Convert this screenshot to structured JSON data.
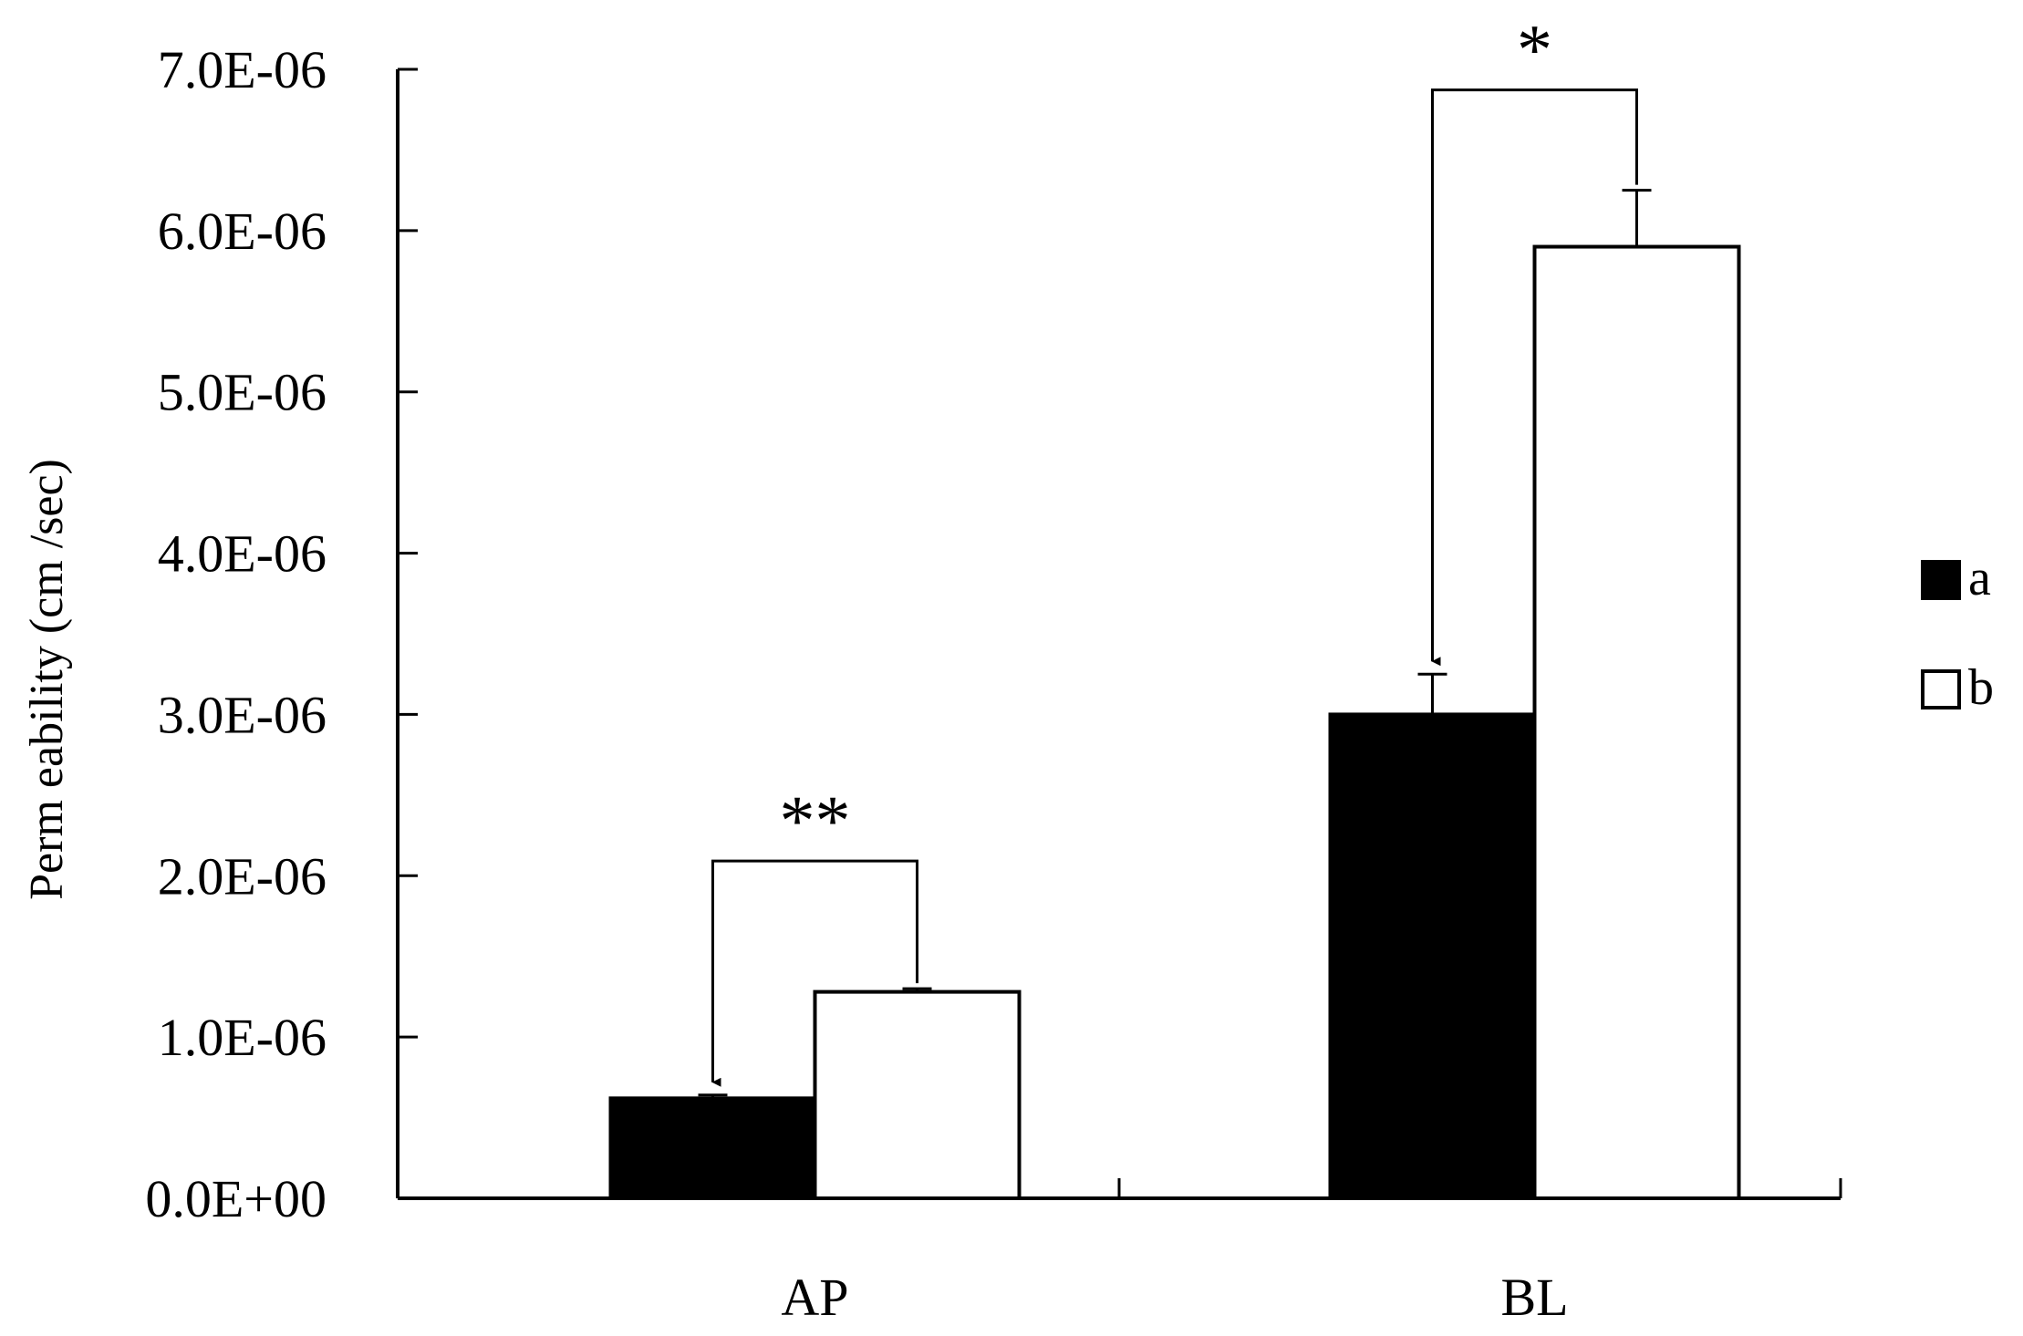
{
  "chart_data": {
    "type": "bar",
    "ylabel": "Perm eability (cm /sec)",
    "categories": [
      "AP",
      "BL"
    ],
    "series": [
      {
        "name": "a",
        "color": "#000000",
        "values": [
          6.2e-07,
          3e-06
        ],
        "errors": [
          2e-08,
          2.5e-07
        ]
      },
      {
        "name": "b",
        "color": "#ffffff",
        "values": [
          1.28e-06,
          5.9e-06
        ],
        "errors": [
          2e-08,
          3.5e-07
        ]
      }
    ],
    "ylim": [
      0,
      7e-06
    ],
    "yticks": [
      {
        "value": 0,
        "label": "0.0E+00"
      },
      {
        "value": 1e-06,
        "label": "1.0E-06"
      },
      {
        "value": 2e-06,
        "label": "2.0E-06"
      },
      {
        "value": 3e-06,
        "label": "3.0E-06"
      },
      {
        "value": 4e-06,
        "label": "4.0E-06"
      },
      {
        "value": 5e-06,
        "label": "5.0E-06"
      },
      {
        "value": 6e-06,
        "label": "6.0E-06"
      },
      {
        "value": 7e-06,
        "label": "7.0E-06"
      }
    ],
    "significance": [
      {
        "category": "AP",
        "label": "**"
      },
      {
        "category": "BL",
        "label": "*"
      }
    ],
    "legend_position": "right",
    "grid": false
  }
}
